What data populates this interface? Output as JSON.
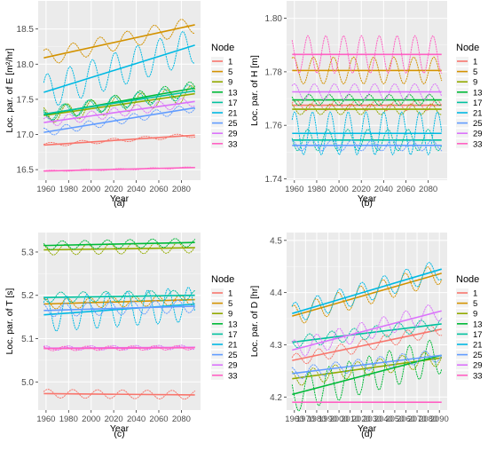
{
  "figure": {
    "legend_title": "Node",
    "nodes": [
      "1",
      "5",
      "9",
      "13",
      "17",
      "21",
      "25",
      "29",
      "33"
    ],
    "colors": [
      "#F8766D",
      "#D39200",
      "#93AA00",
      "#00BA38",
      "#00C19F",
      "#00B9E3",
      "#619CFF",
      "#DB72FB",
      "#FF61C3"
    ],
    "panel_bg": "#EBEBEB",
    "grid_color": "#FFFFFF"
  },
  "chart_data": [
    {
      "type": "line",
      "panel_label": "(a)",
      "xlabel": "Year",
      "ylabel": "Loc. par. of E [m²/hr]",
      "xlim": [
        1953,
        2097
      ],
      "ylim": [
        16.35,
        18.9
      ],
      "xticks": [
        1960,
        1980,
        2000,
        2020,
        2040,
        2060,
        2080
      ],
      "yticks": [
        16.5,
        17.0,
        17.5,
        18.0,
        18.5
      ],
      "ytick_labels": [
        "16.5",
        "17.0",
        "17.5",
        "18.0",
        "18.5"
      ],
      "grid": true,
      "legend_position": "right",
      "series": [
        {
          "name": "1",
          "trend": [
            [
              1958,
              16.85
            ],
            [
              2092,
              16.99
            ]
          ],
          "amp": 0.03,
          "period": 28,
          "phase": 0.3
        },
        {
          "name": "5",
          "trend": [
            [
              1958,
              18.09
            ],
            [
              2092,
              18.56
            ]
          ],
          "amp": 0.12,
          "period": 24,
          "phase": 1.1
        },
        {
          "name": "9",
          "trend": [
            [
              1958,
              17.27
            ],
            [
              2092,
              17.58
            ]
          ],
          "amp": 0.12,
          "period": 22,
          "phase": 2.0
        },
        {
          "name": "13",
          "trend": [
            [
              1958,
              17.28
            ],
            [
              2092,
              17.66
            ]
          ],
          "amp": 0.1,
          "period": 22,
          "phase": 2.4
        },
        {
          "name": "17",
          "trend": [
            [
              1958,
              17.29
            ],
            [
              2092,
              17.62
            ]
          ],
          "amp": 0.1,
          "period": 22,
          "phase": 2.8
        },
        {
          "name": "21",
          "trend": [
            [
              1958,
              17.6
            ],
            [
              2092,
              18.27
            ]
          ],
          "amp": 0.25,
          "period": 20,
          "phase": 0.6
        },
        {
          "name": "25",
          "trend": [
            [
              1958,
              17.03
            ],
            [
              2092,
              17.38
            ]
          ],
          "amp": 0.06,
          "period": 20,
          "phase": 1.7
        },
        {
          "name": "29",
          "trend": [
            [
              1958,
              17.17
            ],
            [
              2092,
              17.47
            ]
          ],
          "amp": 0.07,
          "period": 20,
          "phase": 0.9
        },
        {
          "name": "33",
          "trend": [
            [
              1958,
              16.48
            ],
            [
              2092,
              16.53
            ]
          ],
          "amp": 0.01,
          "period": 30,
          "phase": 0.2
        }
      ]
    },
    {
      "type": "line",
      "panel_label": "(b)",
      "xlabel": "Year",
      "ylabel": "Loc. par. of H [m]",
      "xlim": [
        1953,
        2097
      ],
      "ylim": [
        1.7395,
        1.8065
      ],
      "xticks": [
        1960,
        1980,
        2000,
        2020,
        2040,
        2060,
        2080
      ],
      "yticks": [
        1.74,
        1.76,
        1.78,
        1.8
      ],
      "ytick_labels": [
        "1.74",
        "1.76",
        "1.78",
        "1.80"
      ],
      "grid": true,
      "legend_position": "right",
      "series": [
        {
          "name": "1",
          "trend": [
            [
              1958,
              1.7675
            ],
            [
              2092,
              1.7675
            ]
          ],
          "amp": 0.002,
          "period": 18,
          "phase": 0.4
        },
        {
          "name": "5",
          "trend": [
            [
              1958,
              1.7805
            ],
            [
              2092,
              1.7805
            ]
          ],
          "amp": 0.005,
          "period": 18,
          "phase": 1.2
        },
        {
          "name": "9",
          "trend": [
            [
              1958,
              1.766
            ],
            [
              2092,
              1.766
            ]
          ],
          "amp": 0.002,
          "period": 18,
          "phase": 2.1
        },
        {
          "name": "13",
          "trend": [
            [
              1958,
              1.7695
            ],
            [
              2092,
              1.7695
            ]
          ],
          "amp": 0.002,
          "period": 18,
          "phase": 2.6
        },
        {
          "name": "17",
          "trend": [
            [
              1958,
              1.7545
            ],
            [
              2092,
              1.7545
            ]
          ],
          "amp": 0.004,
          "period": 18,
          "phase": 3.0
        },
        {
          "name": "21",
          "trend": [
            [
              1958,
              1.757
            ],
            [
              2092,
              1.757
            ]
          ],
          "amp": 0.008,
          "period": 16,
          "phase": 0.7
        },
        {
          "name": "25",
          "trend": [
            [
              1958,
              1.7525
            ],
            [
              2092,
              1.7525
            ]
          ],
          "amp": 0.002,
          "period": 18,
          "phase": 1.8
        },
        {
          "name": "29",
          "trend": [
            [
              1958,
              1.7725
            ],
            [
              2092,
              1.7725
            ]
          ],
          "amp": 0.003,
          "period": 18,
          "phase": 0.9
        },
        {
          "name": "33",
          "trend": [
            [
              1958,
              1.7865
            ],
            [
              2092,
              1.7865
            ]
          ],
          "amp": 0.007,
          "period": 16,
          "phase": 2.3
        }
      ]
    },
    {
      "type": "line",
      "panel_label": "(c)",
      "xlabel": "Year",
      "ylabel": "Loc. par. of T [s]",
      "xlim": [
        1953,
        2097
      ],
      "ylim": [
        4.935,
        5.345
      ],
      "xticks": [
        1960,
        1980,
        2000,
        2020,
        2040,
        2060,
        2080
      ],
      "yticks": [
        5.0,
        5.1,
        5.2,
        5.3
      ],
      "ytick_labels": [
        "5.0",
        "5.1",
        "5.2",
        "5.3"
      ],
      "grid": true,
      "legend_position": "right",
      "series": [
        {
          "name": "1",
          "trend": [
            [
              1958,
              4.973
            ],
            [
              2092,
              4.97
            ]
          ],
          "amp": 0.01,
          "period": 22,
          "phase": 0.5
        },
        {
          "name": "5",
          "trend": [
            [
              1958,
              5.18
            ],
            [
              2092,
              5.19
            ]
          ],
          "amp": 0.012,
          "period": 20,
          "phase": 1.3
        },
        {
          "name": "9",
          "trend": [
            [
              1958,
              5.305
            ],
            [
              2092,
              5.31
            ]
          ],
          "amp": 0.012,
          "period": 20,
          "phase": 2.0
        },
        {
          "name": "13",
          "trend": [
            [
              1958,
              5.315
            ],
            [
              2092,
              5.322
            ]
          ],
          "amp": 0.01,
          "period": 20,
          "phase": 2.7
        },
        {
          "name": "17",
          "trend": [
            [
              1958,
              5.195
            ],
            [
              2092,
              5.2
            ]
          ],
          "amp": 0.012,
          "period": 20,
          "phase": 3.1
        },
        {
          "name": "21",
          "trend": [
            [
              1958,
              5.155
            ],
            [
              2092,
              5.18
            ]
          ],
          "amp": 0.04,
          "period": 18,
          "phase": 0.8
        },
        {
          "name": "25",
          "trend": [
            [
              1958,
              5.165
            ],
            [
              2092,
              5.175
            ]
          ],
          "amp": 0.015,
          "period": 20,
          "phase": 1.9
        },
        {
          "name": "29",
          "trend": [
            [
              1958,
              5.078
            ],
            [
              2092,
              5.08
            ]
          ],
          "amp": 0.005,
          "period": 20,
          "phase": 1.0
        },
        {
          "name": "33",
          "trend": [
            [
              1958,
              5.077
            ],
            [
              2092,
              5.079
            ]
          ],
          "amp": 0.005,
          "period": 20,
          "phase": 2.2
        }
      ]
    },
    {
      "type": "line",
      "panel_label": "(d)",
      "xlabel": "Year",
      "ylabel": "Loc. par. of D [hr]",
      "xlim": [
        1953,
        2097
      ],
      "ylim": [
        4.175,
        4.515
      ],
      "xticks": [
        1960,
        1970,
        1980,
        1990,
        2000,
        2010,
        2020,
        2030,
        2040,
        2050,
        2060,
        2070,
        2080,
        2090
      ],
      "yticks": [
        4.2,
        4.3,
        4.4,
        4.5
      ],
      "ytick_labels": [
        "4.2",
        "4.3",
        "4.4",
        "4.5"
      ],
      "grid": true,
      "legend_position": "right",
      "series": [
        {
          "name": "1",
          "trend": [
            [
              1958,
              4.27
            ],
            [
              2092,
              4.33
            ]
          ],
          "amp": 0.012,
          "period": 20,
          "phase": 0.5
        },
        {
          "name": "5",
          "trend": [
            [
              1958,
              4.355
            ],
            [
              2092,
              4.437
            ]
          ],
          "amp": 0.02,
          "period": 20,
          "phase": 1.2
        },
        {
          "name": "9",
          "trend": [
            [
              1958,
              4.235
            ],
            [
              2092,
              4.275
            ]
          ],
          "amp": 0.015,
          "period": 20,
          "phase": 2.0
        },
        {
          "name": "13",
          "trend": [
            [
              1958,
              4.205
            ],
            [
              2092,
              4.28
            ]
          ],
          "amp": 0.035,
          "period": 18,
          "phase": 2.6
        },
        {
          "name": "17",
          "trend": [
            [
              1958,
              4.305
            ],
            [
              2092,
              4.34
            ]
          ],
          "amp": 0.012,
          "period": 20,
          "phase": 3.0
        },
        {
          "name": "21",
          "trend": [
            [
              1958,
              4.36
            ],
            [
              2092,
              4.445
            ]
          ],
          "amp": 0.02,
          "period": 20,
          "phase": 0.8
        },
        {
          "name": "25",
          "trend": [
            [
              1958,
              4.245
            ],
            [
              2092,
              4.28
            ]
          ],
          "amp": 0.012,
          "period": 20,
          "phase": 1.9
        },
        {
          "name": "29",
          "trend": [
            [
              1958,
              4.29
            ],
            [
              2092,
              4.365
            ]
          ],
          "amp": 0.018,
          "period": 20,
          "phase": 1.0
        },
        {
          "name": "33",
          "trend": [
            [
              1958,
              4.19
            ],
            [
              2092,
              4.19
            ]
          ],
          "amp": 0.0,
          "period": 20,
          "phase": 0.0
        }
      ]
    }
  ]
}
